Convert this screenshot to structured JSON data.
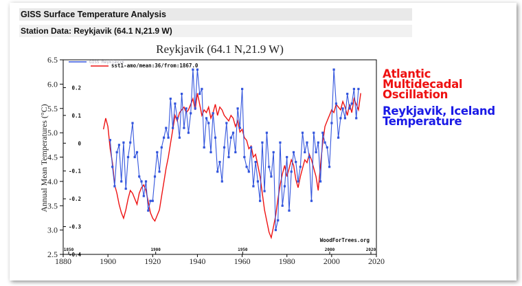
{
  "header": {
    "title": "GISS Surface Temperature Analysis",
    "subtitle": "Station Data: Reykjavik (64.1 N,21.9 W)"
  },
  "annotations": {
    "amo_lines": [
      "Atlantic",
      "Multidecadal",
      "Oscillation"
    ],
    "temp_lines": [
      "Reykjavik, Iceland",
      "Temperature"
    ],
    "amo_color": "#ee1111",
    "temp_color": "#1a1ae6"
  },
  "chart_data": {
    "type": "line",
    "title": "Reykjavik (64.1 N,21.9 W)",
    "ylabel": "Annual Mean Temperatures (°C)",
    "xlim": [
      1880,
      2020
    ],
    "ylim": [
      2.5,
      6.5
    ],
    "y2lim": [
      -0.4,
      0.3
    ],
    "x_ticks": [
      "1880",
      "1900",
      "1920",
      "1940",
      "1960",
      "1980",
      "2000",
      "2020"
    ],
    "y_ticks": [
      "2.5",
      "3.0",
      "3.5",
      "4.0",
      "4.5",
      "5.0",
      "5.5",
      "6.0",
      "6.5"
    ],
    "y2_ticks": [
      "-0.4",
      "-0.3",
      "-0.2",
      "-0.1",
      "0",
      "0.1",
      "0.2"
    ],
    "x2_ticks": [
      "1850",
      "1900",
      "1950",
      "2000",
      "2020"
    ],
    "legend_entries": [
      "GISS Reykjavik",
      "sst1-amo/mean:36/from:1867.0"
    ],
    "legend_position": "top-left",
    "watermark": "WoodForTrees.org",
    "series": [
      {
        "name": "GISS Reykjavik",
        "color": "#3355dd",
        "x": [
          1901,
          1902,
          1903,
          1904,
          1905,
          1906,
          1907,
          1908,
          1909,
          1910,
          1911,
          1912,
          1913,
          1914,
          1915,
          1916,
          1917,
          1918,
          1919,
          1920,
          1921,
          1922,
          1923,
          1924,
          1925,
          1926,
          1927,
          1928,
          1929,
          1930,
          1931,
          1932,
          1933,
          1934,
          1935,
          1936,
          1937,
          1938,
          1939,
          1940,
          1941,
          1942,
          1943,
          1944,
          1945,
          1946,
          1947,
          1948,
          1949,
          1950,
          1951,
          1952,
          1953,
          1954,
          1955,
          1956,
          1957,
          1958,
          1959,
          1960,
          1961,
          1962,
          1963,
          1964,
          1965,
          1966,
          1967,
          1968,
          1969,
          1970,
          1971,
          1972,
          1973,
          1974,
          1975,
          1976,
          1977,
          1978,
          1979,
          1980,
          1981,
          1982,
          1983,
          1984,
          1985,
          1986,
          1987,
          1988,
          1989,
          1990,
          1991,
          1992,
          1993,
          1994,
          1995,
          1996,
          1997,
          1998,
          1999,
          2000,
          2001,
          2002,
          2003,
          2004,
          2005,
          2006,
          2007,
          2008,
          2009,
          2010,
          2011,
          2012
        ],
        "values": [
          4.85,
          4.3,
          3.9,
          4.6,
          4.75,
          4.0,
          4.8,
          3.85,
          4.5,
          4.8,
          5.2,
          4.5,
          4.6,
          4.1,
          4.0,
          3.7,
          4.0,
          3.4,
          3.6,
          3.6,
          4.1,
          4.6,
          4.2,
          4.7,
          4.9,
          5.1,
          4.9,
          5.7,
          5.1,
          5.6,
          5.3,
          4.9,
          5.8,
          5.1,
          5.5,
          5.0,
          5.4,
          6.3,
          5.5,
          6.3,
          5.8,
          5.9,
          4.7,
          5.3,
          5.2,
          4.6,
          5.4,
          4.9,
          4.2,
          4.4,
          4.0,
          4.7,
          5.2,
          4.5,
          4.9,
          5.0,
          4.6,
          5.5,
          5.1,
          5.9,
          4.5,
          4.3,
          4.2,
          4.7,
          3.9,
          4.4,
          4.0,
          3.6,
          4.8,
          3.8,
          5.0,
          4.3,
          4.1,
          4.6,
          3.0,
          3.2,
          4.8,
          3.5,
          3.9,
          4.5,
          3.4,
          4.2,
          4.6,
          4.4,
          4.0,
          4.3,
          5.0,
          4.6,
          4.8,
          4.5,
          3.6,
          5.0,
          4.6,
          4.8,
          4.0,
          5.0,
          4.8,
          4.7,
          4.3,
          5.2,
          6.3,
          5.6,
          4.9,
          5.3,
          5.5,
          5.3,
          5.8,
          5.5,
          5.6,
          5.9,
          5.3,
          5.9
        ]
      },
      {
        "name": "sst1-amo/mean:36/from:1867.0",
        "color": "#ee1111",
        "x": [
          1898,
          1899,
          1900,
          1901,
          1902,
          1903,
          1904,
          1905,
          1906,
          1907,
          1908,
          1909,
          1910,
          1911,
          1912,
          1913,
          1914,
          1915,
          1916,
          1917,
          1918,
          1919,
          1920,
          1921,
          1922,
          1923,
          1924,
          1925,
          1926,
          1927,
          1928,
          1929,
          1930,
          1931,
          1932,
          1933,
          1934,
          1935,
          1936,
          1937,
          1938,
          1939,
          1940,
          1941,
          1942,
          1943,
          1944,
          1945,
          1946,
          1947,
          1948,
          1949,
          1950,
          1951,
          1952,
          1953,
          1954,
          1955,
          1956,
          1957,
          1958,
          1959,
          1960,
          1961,
          1962,
          1963,
          1964,
          1965,
          1966,
          1967,
          1968,
          1969,
          1970,
          1971,
          1972,
          1973,
          1974,
          1975,
          1976,
          1977,
          1978,
          1979,
          1980,
          1981,
          1982,
          1983,
          1984,
          1985,
          1986,
          1987,
          1988,
          1989,
          1990,
          1991,
          1992,
          1993,
          1994,
          1995,
          1996,
          1997,
          1998,
          1999,
          2000,
          2001,
          2002,
          2003,
          2004,
          2005,
          2006,
          2007,
          2008,
          2009,
          2010,
          2011,
          2012,
          2013
        ],
        "values": [
          0.05,
          0.09,
          0.06,
          -0.02,
          -0.07,
          -0.15,
          -0.18,
          -0.22,
          -0.25,
          -0.27,
          -0.24,
          -0.2,
          -0.17,
          -0.18,
          -0.2,
          -0.22,
          -0.18,
          -0.16,
          -0.15,
          -0.17,
          -0.21,
          -0.25,
          -0.27,
          -0.28,
          -0.26,
          -0.24,
          -0.19,
          -0.14,
          -0.09,
          -0.05,
          0.0,
          0.05,
          0.1,
          0.08,
          0.11,
          0.12,
          0.13,
          0.11,
          0.12,
          0.14,
          0.16,
          0.12,
          0.18,
          0.14,
          0.1,
          0.12,
          0.11,
          0.13,
          0.09,
          0.11,
          0.14,
          0.1,
          0.13,
          0.12,
          0.1,
          0.09,
          0.08,
          0.1,
          0.09,
          0.06,
          0.08,
          0.04,
          0.05,
          0.02,
          0.01,
          -0.02,
          -0.01,
          -0.05,
          -0.04,
          -0.08,
          -0.12,
          -0.18,
          -0.24,
          -0.28,
          -0.32,
          -0.34,
          -0.3,
          -0.26,
          -0.2,
          -0.15,
          -0.11,
          -0.08,
          -0.12,
          -0.09,
          -0.06,
          -0.08,
          -0.13,
          -0.16,
          -0.12,
          -0.09,
          -0.06,
          -0.07,
          -0.04,
          -0.06,
          -0.09,
          -0.12,
          -0.17,
          -0.08,
          0.0,
          0.06,
          0.08,
          0.1,
          0.12,
          0.11,
          0.14,
          0.13,
          0.12,
          0.15,
          0.13,
          0.1,
          0.14,
          0.11,
          0.16,
          0.14,
          0.12,
          0.18
        ]
      }
    ]
  }
}
